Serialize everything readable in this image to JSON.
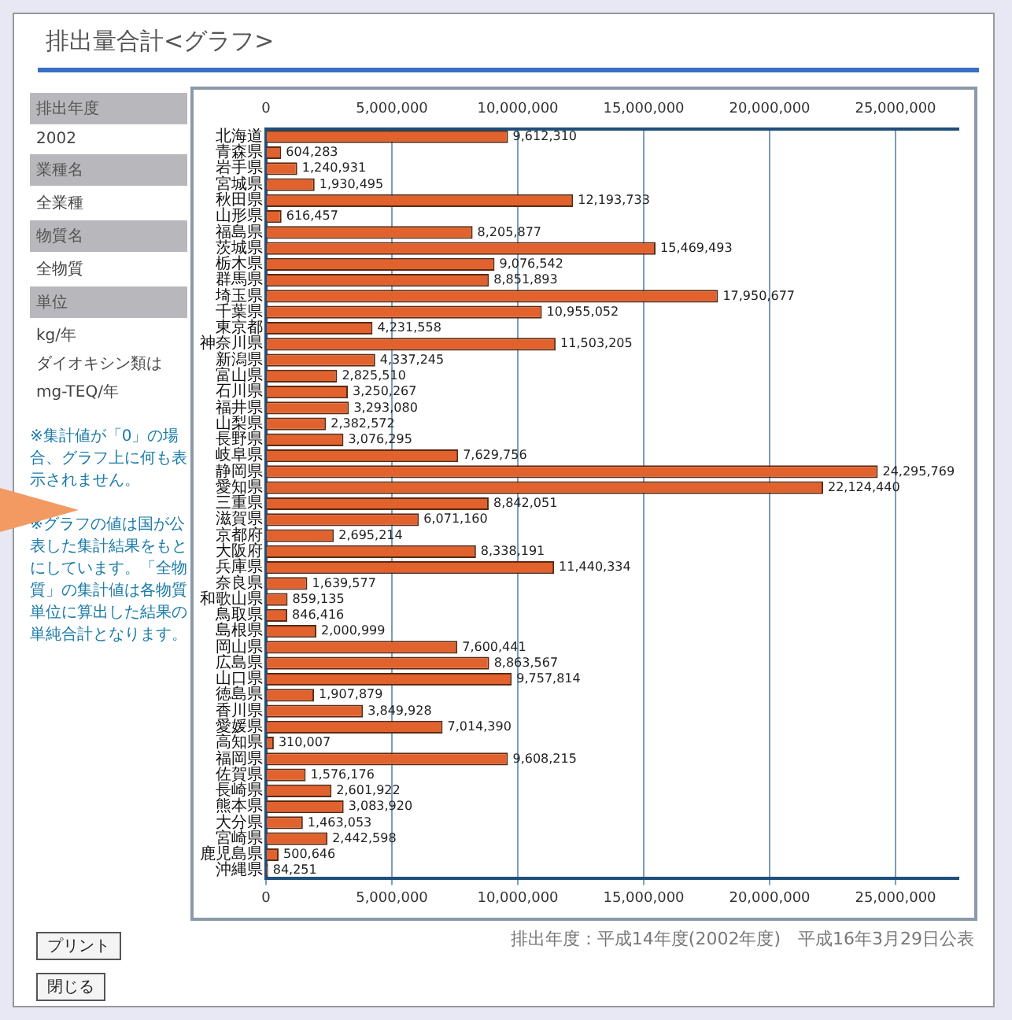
{
  "chart_data": {
    "type": "bar",
    "orientation": "horizontal",
    "title": "排出量合計<グラフ>",
    "categories": [
      "北海道",
      "青森県",
      "岩手県",
      "宮城県",
      "秋田県",
      "山形県",
      "福島県",
      "茨城県",
      "栃木県",
      "群馬県",
      "埼玉県",
      "千葉県",
      "東京都",
      "神奈川県",
      "新潟県",
      "富山県",
      "石川県",
      "福井県",
      "山梨県",
      "長野県",
      "岐阜県",
      "静岡県",
      "愛知県",
      "三重県",
      "滋賀県",
      "京都府",
      "大阪府",
      "兵庫県",
      "奈良県",
      "和歌山県",
      "鳥取県",
      "島根県",
      "岡山県",
      "広島県",
      "山口県",
      "徳島県",
      "香川県",
      "愛媛県",
      "高知県",
      "福岡県",
      "佐賀県",
      "長崎県",
      "熊本県",
      "大分県",
      "宮崎県",
      "鹿児島県",
      "沖縄県"
    ],
    "values": [
      9612310,
      604283,
      1240931,
      1930495,
      12193733,
      616457,
      8205877,
      15469493,
      9076542,
      8851893,
      17950677,
      10955052,
      4231558,
      11503205,
      4337245,
      2825510,
      3250267,
      3293080,
      2382572,
      3076295,
      7629756,
      24295769,
      22124440,
      8842051,
      6071160,
      2695214,
      8338191,
      11440334,
      1639577,
      859135,
      846416,
      2000999,
      7600441,
      8863567,
      9757814,
      1907879,
      3849928,
      7014390,
      310007,
      9608215,
      1576176,
      2601922,
      3083920,
      1463053,
      2442598,
      500646,
      84251
    ],
    "value_labels": [
      "9,612,310",
      "604,283",
      "1,240,931",
      "1,930,495",
      "12,193,733",
      "616,457",
      "8,205,877",
      "15,469,493",
      "9,076,542",
      "8,851,893",
      "17,950,677",
      "10,955,052",
      "4,231,558",
      "11,503,205",
      "4,337,245",
      "2,825,510",
      "3,250,267",
      "3,293,080",
      "2,382,572",
      "3,076,295",
      "7,629,756",
      "24,295,769",
      "22,124,440",
      "8,842,051",
      "6,071,160",
      "2,695,214",
      "8,338,191",
      "11,440,334",
      "1,639,577",
      "859,135",
      "846,416",
      "2,000,999",
      "7,600,441",
      "8,863,567",
      "9,757,814",
      "1,907,879",
      "3,849,928",
      "7,014,390",
      "310,007",
      "9,608,215",
      "1,576,176",
      "2,601,922",
      "3,083,920",
      "1,463,053",
      "2,442,598",
      "500,646",
      "84,251"
    ],
    "color": "#e2622e",
    "xlim": [
      0,
      27500000
    ],
    "xticks": [
      {
        "value": 0,
        "label": "0"
      },
      {
        "value": 5000000,
        "label": "5,000,000"
      },
      {
        "value": 10000000,
        "label": "10,000,000"
      },
      {
        "value": 15000000,
        "label": "15,000,000"
      },
      {
        "value": 20000000,
        "label": "20,000,000"
      },
      {
        "value": 25000000,
        "label": "25,000,000"
      }
    ],
    "x2lim": [
      0,
      27500000
    ],
    "x2ticks": [
      {
        "value": 0,
        "label": "0"
      },
      {
        "value": 5000000,
        "label": "5,000,000"
      },
      {
        "value": 10000000,
        "label": "10,000,000"
      },
      {
        "value": 15000000,
        "label": "15,000,000"
      },
      {
        "value": 20000000,
        "label": "20,000,000"
      },
      {
        "value": 25000000,
        "label": "25,000,000"
      }
    ],
    "grid": "x",
    "legend": false,
    "annotations": [
      "排出年度",
      "2002",
      "業種名",
      "全業種",
      "物質名",
      "全物質",
      "単位",
      "kg/年",
      "ダイオキシン類は",
      "mg-TEQ/年",
      "※集計値が「0」の場合、グラフ上に何も表示されません。",
      "※グラフの値は国が公表した集計結果をもとにしています。「全物質」の集計値は各物質単位に算出した結果の単純合計となります。",
      "排出年度：平成14年度(2002年度)　平成16年3月29日公表",
      "プリント",
      "閉じる"
    ]
  }
}
